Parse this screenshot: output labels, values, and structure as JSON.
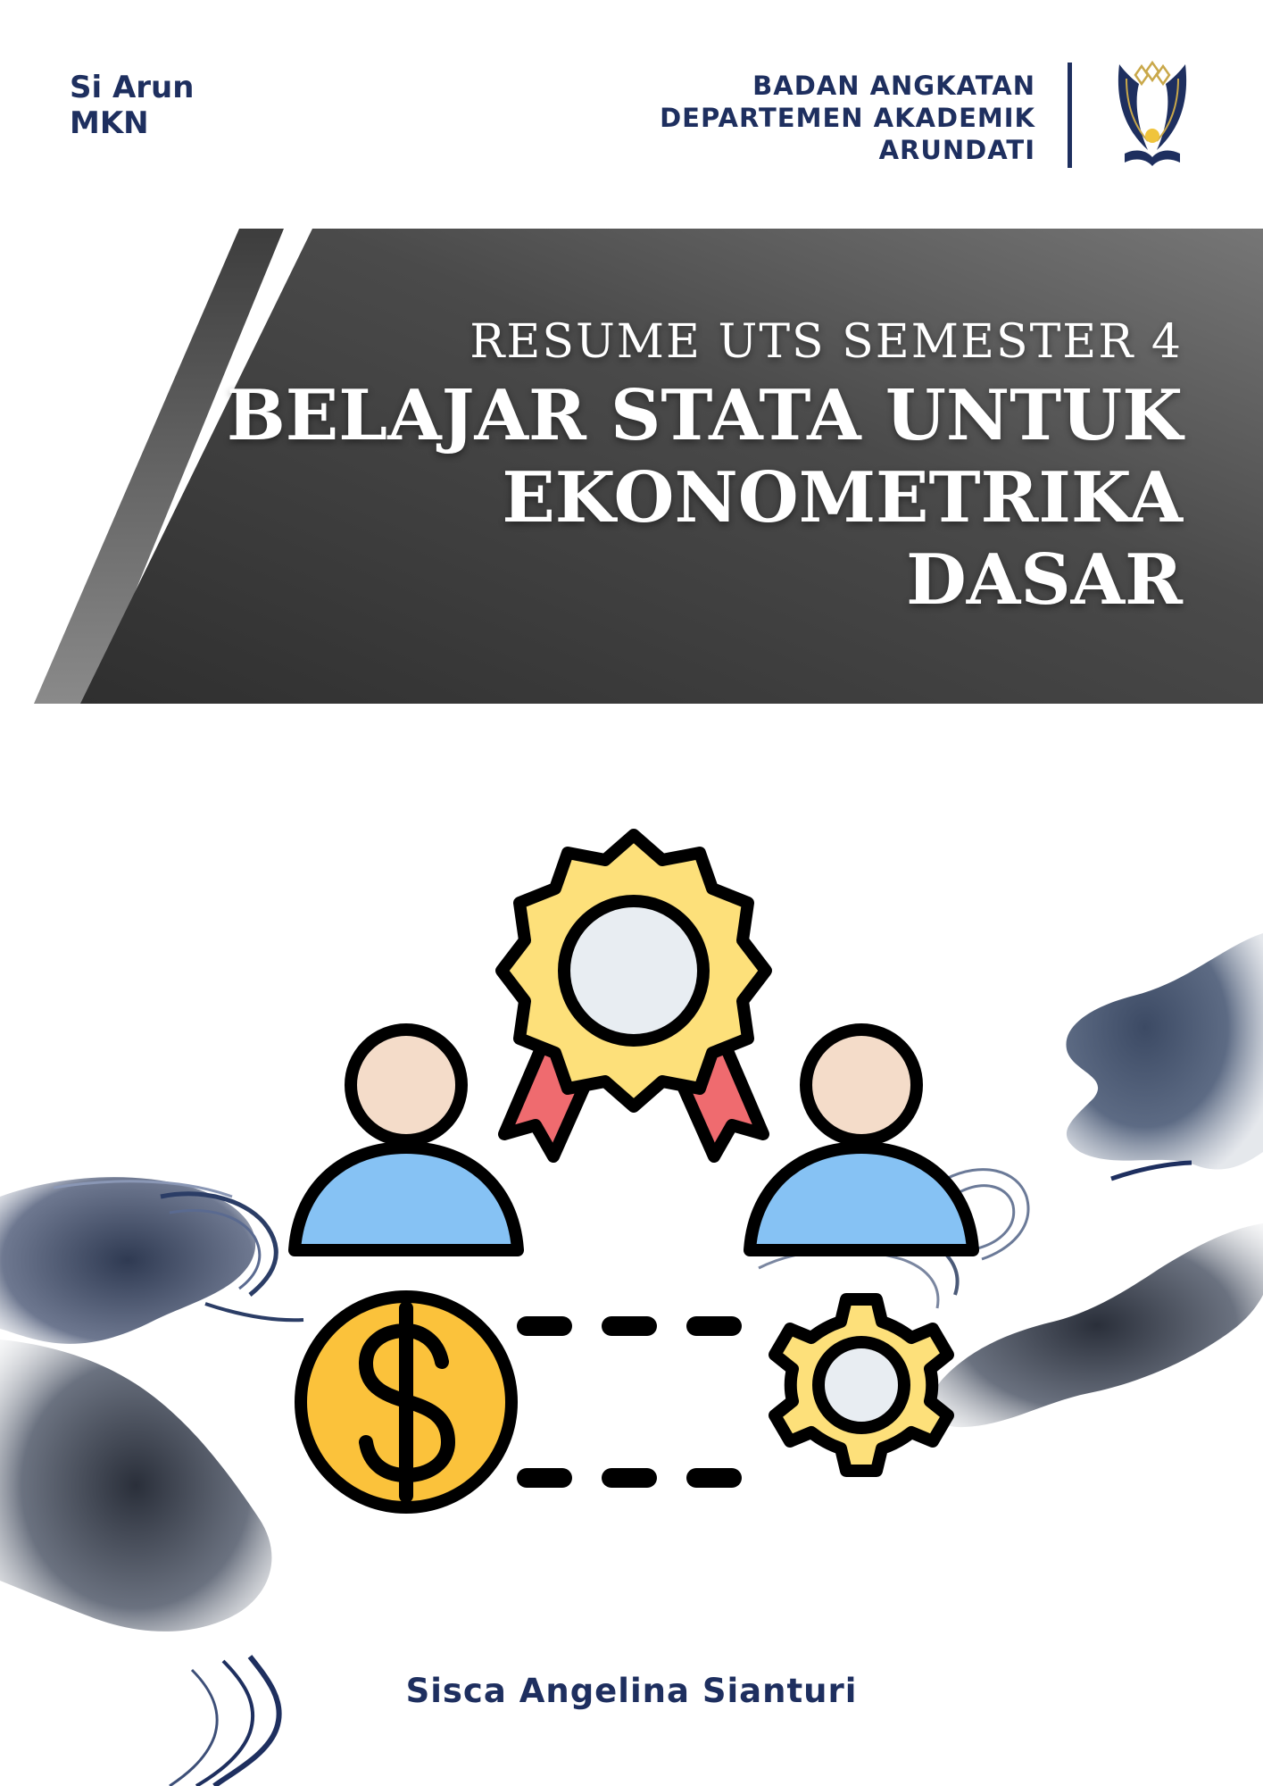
{
  "header": {
    "left_lines": [
      "Si Arun",
      "MKN"
    ],
    "right_lines": [
      "BADAN ANGKATAN",
      "DEPARTEMEN AKADEMIK",
      "ARUNDATI"
    ]
  },
  "title": {
    "subtitle": "RESUME UTS SEMESTER 4",
    "main_lines": [
      "BELAJAR STATA UNTUK",
      "EKONOMETRIKA",
      "DASAR"
    ]
  },
  "author": "Sisca Angelina Sianturi",
  "illustration": {
    "icons": [
      "award-badge-icon",
      "person-left-icon",
      "person-right-icon",
      "dollar-coin-icon",
      "gear-icon"
    ]
  },
  "colors": {
    "navy": "#1e2f5f",
    "banner_dark": "#3a3a3a",
    "banner_light": "#727272",
    "badge_yellow": "#fde07a",
    "coin_yellow": "#fbc23b",
    "ribbon_red": "#ef6b6f",
    "person_blue": "#86c2f4",
    "skin": "#f4dcc9",
    "medal_grey": "#e8edf2"
  }
}
